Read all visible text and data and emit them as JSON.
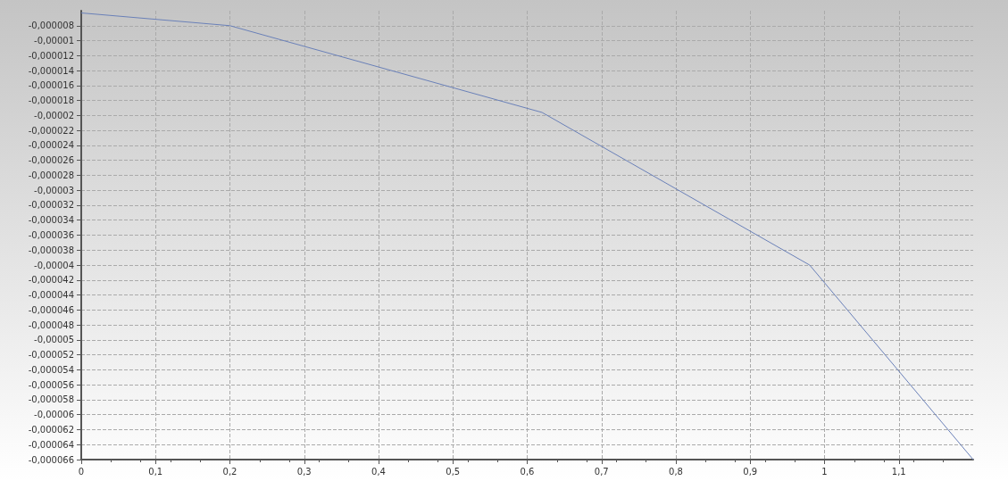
{
  "chart_data": {
    "type": "line",
    "x": [
      0,
      0.2,
      0.62,
      0.98,
      1.2
    ],
    "series": [
      {
        "color": "#6a80b8",
        "values": [
          -6.3e-06,
          -8e-06,
          -1.96e-05,
          -4e-05,
          -6.6e-05
        ]
      }
    ],
    "xlim": [
      0,
      1.2
    ],
    "xticks": [
      {
        "value": 0,
        "label": "0"
      },
      {
        "value": 0.1,
        "label": "0,1"
      },
      {
        "value": 0.2,
        "label": "0,2"
      },
      {
        "value": 0.3,
        "label": "0,3"
      },
      {
        "value": 0.4,
        "label": "0,4"
      },
      {
        "value": 0.5,
        "label": "0,5"
      },
      {
        "value": 0.6,
        "label": "0,6"
      },
      {
        "value": 0.7,
        "label": "0,7"
      },
      {
        "value": 0.8,
        "label": "0,8"
      },
      {
        "value": 0.9,
        "label": "0,9"
      },
      {
        "value": 1,
        "label": "1"
      },
      {
        "value": 1.1,
        "label": "1,1"
      }
    ],
    "ylim": [
      -6.6e-05,
      -6e-06
    ],
    "yticks": [
      {
        "value": -8e-06,
        "label": "-0,000008"
      },
      {
        "value": -1e-05,
        "label": "-0,00001"
      },
      {
        "value": -1.2e-05,
        "label": "-0,000012"
      },
      {
        "value": -1.4e-05,
        "label": "-0,000014"
      },
      {
        "value": -1.6e-05,
        "label": "-0,000016"
      },
      {
        "value": -1.8e-05,
        "label": "-0,000018"
      },
      {
        "value": -2e-05,
        "label": "-0,00002"
      },
      {
        "value": -2.2e-05,
        "label": "-0,000022"
      },
      {
        "value": -2.4e-05,
        "label": "-0,000024"
      },
      {
        "value": -2.6e-05,
        "label": "-0,000026"
      },
      {
        "value": -2.8e-05,
        "label": "-0,000028"
      },
      {
        "value": -3e-05,
        "label": "-0,00003"
      },
      {
        "value": -3.2e-05,
        "label": "-0,000032"
      },
      {
        "value": -3.4e-05,
        "label": "-0,000034"
      },
      {
        "value": -3.6e-05,
        "label": "-0,000036"
      },
      {
        "value": -3.8e-05,
        "label": "-0,000038"
      },
      {
        "value": -4e-05,
        "label": "-0,00004"
      },
      {
        "value": -4.2e-05,
        "label": "-0,000042"
      },
      {
        "value": -4.4e-05,
        "label": "-0,000044"
      },
      {
        "value": -4.6e-05,
        "label": "-0,000046"
      },
      {
        "value": -4.8e-05,
        "label": "-0,000048"
      },
      {
        "value": -5e-05,
        "label": "-0,00005"
      },
      {
        "value": -5.2e-05,
        "label": "-0,000052"
      },
      {
        "value": -5.4e-05,
        "label": "-0,000054"
      },
      {
        "value": -5.6e-05,
        "label": "-0,000056"
      },
      {
        "value": -5.8e-05,
        "label": "-0,000058"
      },
      {
        "value": -6e-05,
        "label": "-0,00006"
      },
      {
        "value": -6.2e-05,
        "label": "-0,000062"
      },
      {
        "value": -6.4e-05,
        "label": "-0,000064"
      },
      {
        "value": -6.6e-05,
        "label": "-0,000066"
      }
    ],
    "grid": true,
    "marker": "none",
    "line_style": "solid"
  }
}
